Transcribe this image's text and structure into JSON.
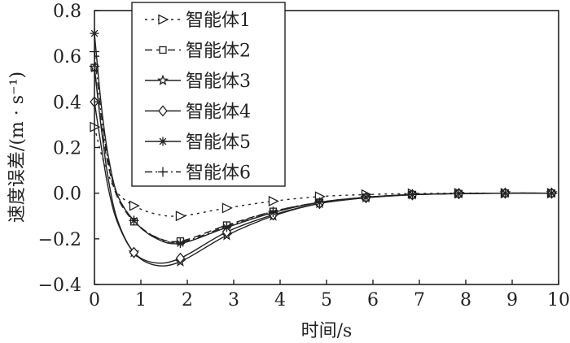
{
  "chart_data": {
    "type": "line",
    "title": "",
    "xlabel": "时间/s",
    "ylabel": "速度误差/(m · s⁻¹)",
    "xlim": [
      0,
      10
    ],
    "ylim": [
      -0.4,
      0.8
    ],
    "xticks": [
      "0",
      "1",
      "2",
      "3",
      "4",
      "5",
      "6",
      "7",
      "8",
      "9",
      "10"
    ],
    "yticks": [
      "0.8",
      "0.6",
      "0.4",
      "0.2",
      "0.0",
      "−0.2",
      "−0.4"
    ],
    "ytick_values": [
      0.8,
      0.6,
      0.4,
      0.2,
      0.0,
      -0.2,
      -0.4
    ],
    "grid": false,
    "legend_position": "top-left",
    "x": [
      0,
      0.15,
      0.3,
      0.5,
      0.85,
      1.3,
      1.85,
      2.85,
      3.85,
      4.85,
      5.85,
      6.85,
      7.85,
      8.85,
      9.85
    ],
    "marker_x": [
      0,
      0.85,
      1.85,
      2.85,
      3.85,
      4.85,
      5.85,
      6.85,
      7.85,
      8.85,
      9.85
    ],
    "series": [
      {
        "name": "智能体1",
        "marker": "triangle-right",
        "dash": "3,5",
        "values": [
          0.29,
          0.17,
          0.08,
          0.0,
          -0.055,
          -0.09,
          -0.1,
          -0.065,
          -0.035,
          -0.015,
          -0.006,
          -0.002,
          0,
          0,
          0
        ]
      },
      {
        "name": "智能体2",
        "marker": "square",
        "dash": "9,5",
        "values": [
          0.55,
          0.3,
          0.12,
          -0.02,
          -0.125,
          -0.19,
          -0.21,
          -0.14,
          -0.08,
          -0.04,
          -0.018,
          -0.006,
          -0.002,
          0,
          0
        ]
      },
      {
        "name": "智能体3",
        "marker": "star",
        "dash": "",
        "values": [
          0.55,
          0.28,
          0.06,
          -0.12,
          -0.26,
          -0.315,
          -0.3,
          -0.185,
          -0.1,
          -0.045,
          -0.02,
          -0.007,
          -0.002,
          0,
          0
        ]
      },
      {
        "name": "智能体4",
        "marker": "diamond",
        "dash": "",
        "values": [
          0.4,
          0.2,
          0.02,
          -0.13,
          -0.26,
          -0.305,
          -0.285,
          -0.17,
          -0.095,
          -0.045,
          -0.02,
          -0.007,
          -0.002,
          0,
          0
        ]
      },
      {
        "name": "智能体5",
        "marker": "asterisk",
        "dash": "",
        "values": [
          0.7,
          0.38,
          0.16,
          -0.01,
          -0.12,
          -0.195,
          -0.22,
          -0.15,
          -0.085,
          -0.04,
          -0.018,
          -0.006,
          -0.002,
          0,
          0
        ]
      },
      {
        "name": "智能体6",
        "marker": "plus",
        "dash": "9,4,2,4",
        "values": [
          0.62,
          0.34,
          0.14,
          -0.01,
          -0.12,
          -0.19,
          -0.215,
          -0.145,
          -0.08,
          -0.04,
          -0.018,
          -0.006,
          -0.002,
          0,
          0
        ]
      }
    ]
  }
}
